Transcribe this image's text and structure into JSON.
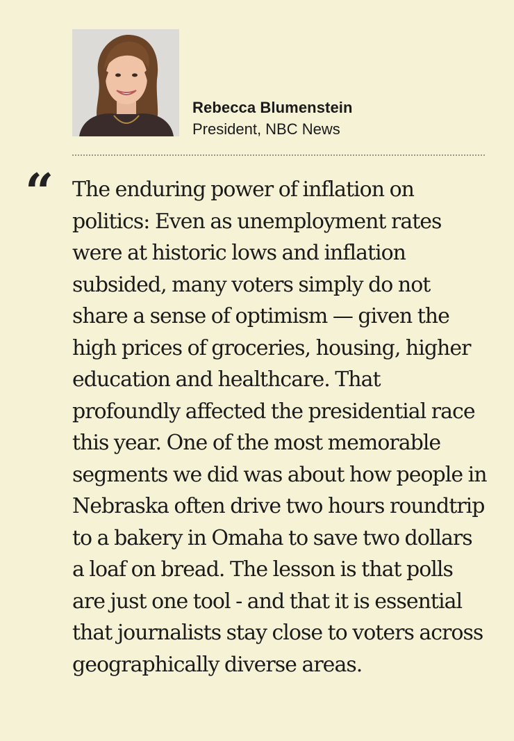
{
  "author": {
    "name": "Rebecca Blumenstein",
    "role": "President, NBC News"
  },
  "quote": {
    "mark": "“",
    "text": "The enduring power of inflation on politics: Even as unemployment rates were at historic lows and inflation subsided, many voters simply do not share a sense of optimism — given the high prices of groceries, housing, higher education and healthcare. That profoundly affected the presidential race this year. One of the most memorable segments we did was about how people in Nebraska often drive two hours roundtrip to a bakery in Omaha to save two dollars a loaf on bread. The lesson is that polls are just one tool - and that it is essential that journalists stay close to voters across geographically diverse areas."
  },
  "colors": {
    "background": "#f6f2d6",
    "text": "#1a1a1a",
    "divider": "#9a9788"
  }
}
